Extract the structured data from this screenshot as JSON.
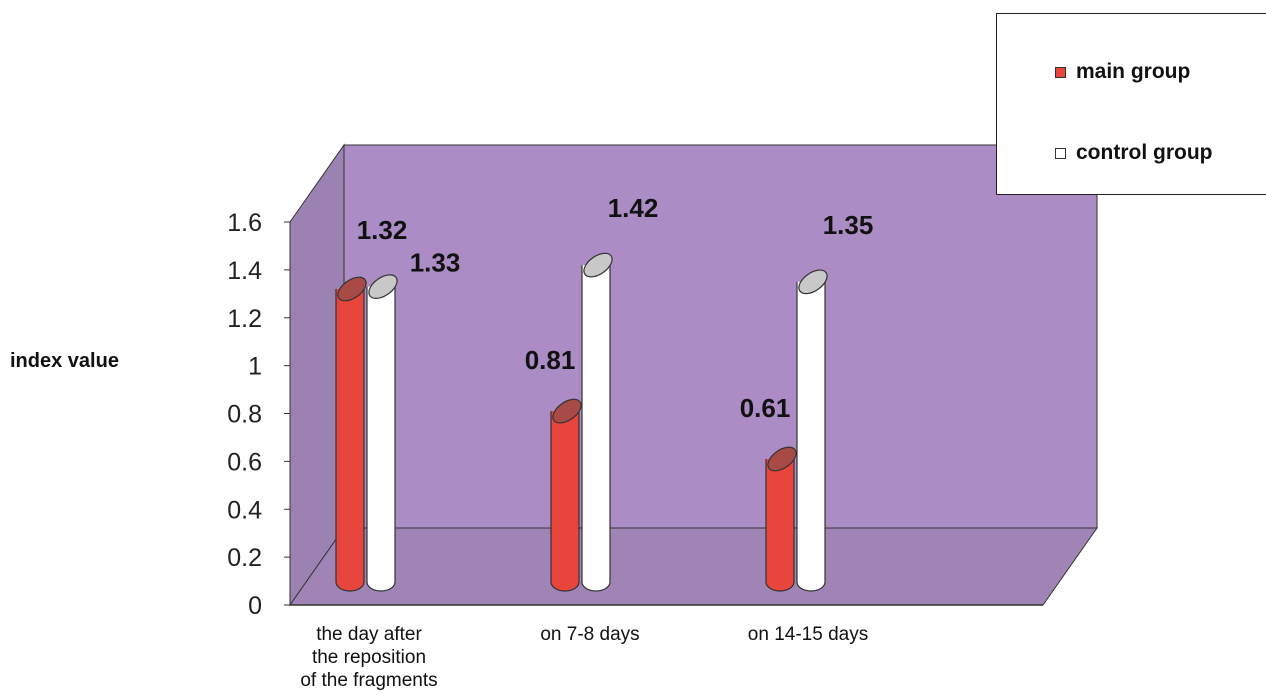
{
  "chart_data": {
    "type": "bar",
    "style": "3d-cylinder",
    "categories": [
      [
        "the day after",
        "the reposition",
        "of the fragments"
      ],
      [
        "on 7-8 days"
      ],
      [
        "on 14-15 days"
      ]
    ],
    "series": [
      {
        "name": "main group",
        "values": [
          1.32,
          0.81,
          0.61
        ],
        "labels": [
          "1.32",
          "0.81",
          "0.61"
        ],
        "color": "#e8453c",
        "top_color": "#a84a45"
      },
      {
        "name": "control group",
        "values": [
          1.33,
          1.42,
          1.35
        ],
        "labels": [
          "1.33",
          "1.42",
          "1.35"
        ],
        "color": "#ffffff",
        "top_color": "#c8c8c8"
      }
    ],
    "ylabel": "index value",
    "ylim": [
      0,
      1.6
    ],
    "yticks": [
      "0",
      "0.2",
      "0.4",
      "0.6",
      "0.8",
      "1",
      "1.2",
      "1.4",
      "1.6"
    ],
    "legend_position": "top-right",
    "grid": false,
    "colors": {
      "back_wall": "#ab8cc5",
      "side_wall": "#9b82b3",
      "floor": "#9f84b5"
    }
  }
}
